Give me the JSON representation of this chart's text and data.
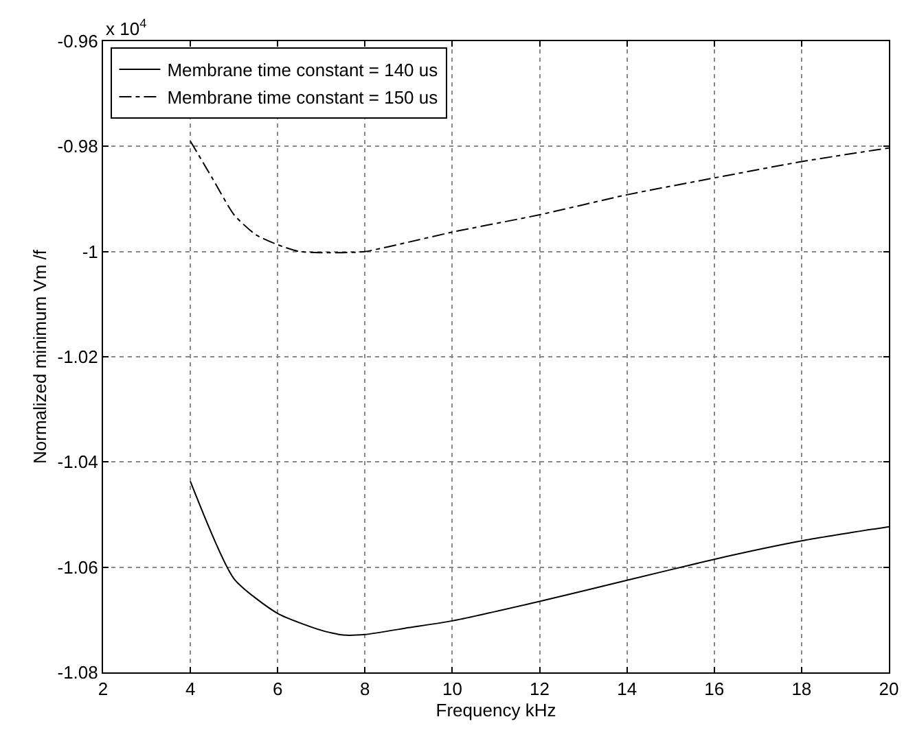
{
  "chart_data": {
    "type": "line",
    "xlabel": "Frequency kHz",
    "ylabel": "Normalized minimum Vm /f",
    "annotations": [
      "x 10$^{4}$"
    ],
    "xlim": [
      2,
      20
    ],
    "xticks": [
      2,
      4,
      6,
      8,
      10,
      12,
      14,
      16,
      18,
      20
    ],
    "ylim": [
      -1.08,
      -0.96
    ],
    "yticks": [
      -1.08,
      -1.06,
      -1.04,
      -1.02,
      -1,
      -0.98,
      -0.96
    ],
    "grid": true,
    "legend": "top left",
    "marker": "none",
    "series": [
      {
        "name": "Membrane time constant = 140 us",
        "color": "#000000",
        "line_style": "solid",
        "x": [
          4,
          5,
          6,
          7,
          7.5,
          8,
          9,
          10,
          12,
          14,
          16,
          18,
          20
        ],
        "values": [
          -1.0437,
          -1.0622,
          -1.0688,
          -1.072,
          -1.0729,
          -1.0728,
          -1.0715,
          -1.0702,
          -1.0665,
          -1.0625,
          -1.0585,
          -1.055,
          -1.0523
        ]
      },
      {
        "name": "Membrane time constant = 150 us",
        "color": "#000000",
        "line_style": "dashdot",
        "x": [
          4,
          4.5,
          5,
          5.5,
          6,
          6.5,
          7,
          7.5,
          8,
          9,
          10,
          12,
          14,
          16,
          18,
          20
        ],
        "values": [
          -0.979,
          -0.986,
          -0.993,
          -0.9968,
          -0.9987,
          -1.0,
          -1.0002,
          -1.0002,
          -1.0,
          -0.9982,
          -0.9963,
          -0.993,
          -0.9892,
          -0.986,
          -0.9829,
          -0.9803
        ]
      }
    ]
  }
}
